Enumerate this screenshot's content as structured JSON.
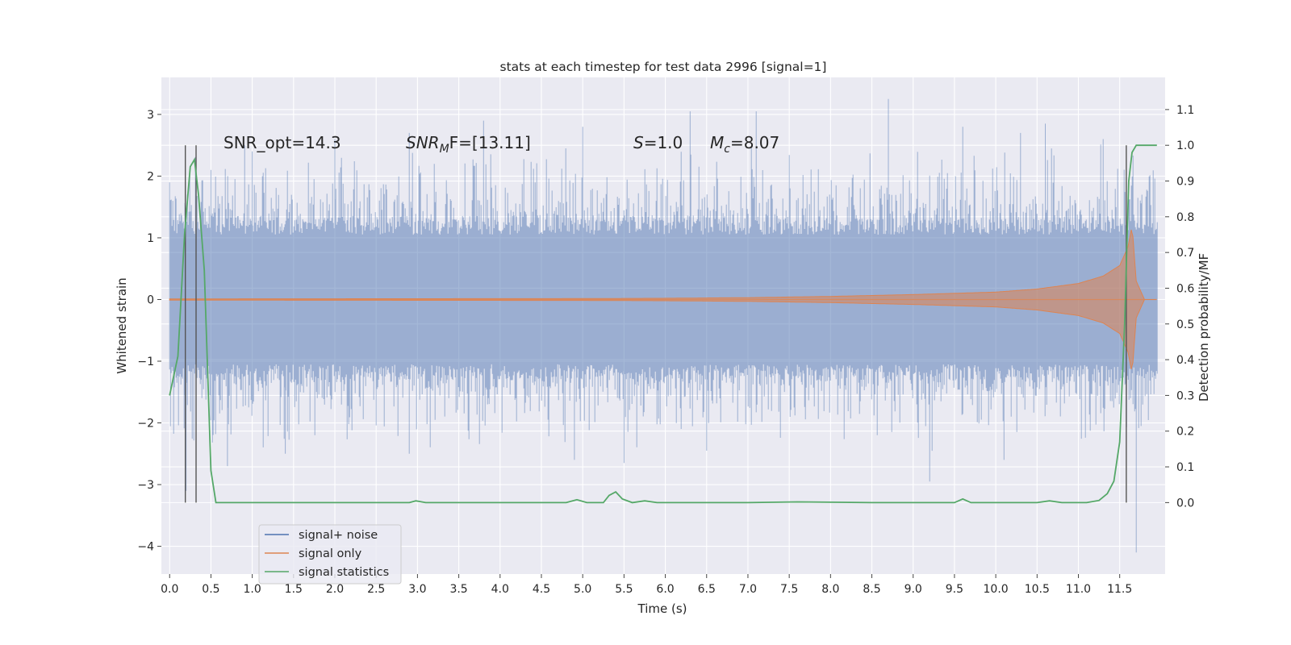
{
  "chart_data": {
    "type": "line",
    "title": "stats at each timestep for test data 2996 [signal=1]",
    "xlabel": "Time (s)",
    "ylabel": "Whitened strain",
    "ylabel_right": "Detection probability/MF",
    "xlim": [
      -0.1,
      12.05
    ],
    "ylim_left": [
      -4.45,
      3.6
    ],
    "ylim_right": [
      -0.2,
      1.19
    ],
    "x_ticks": [
      "0.0",
      "0.5",
      "1.0",
      "1.5",
      "2.0",
      "2.5",
      "3.0",
      "3.5",
      "4.0",
      "4.5",
      "5.0",
      "5.5",
      "6.0",
      "6.5",
      "7.0",
      "7.5",
      "8.0",
      "8.5",
      "9.0",
      "9.5",
      "10.0",
      "10.5",
      "11.0",
      "11.5"
    ],
    "y_ticks_left": [
      "3",
      "2",
      "1",
      "0",
      "−1",
      "−2",
      "−3",
      "−4"
    ],
    "y_ticks_right": [
      "1.1",
      "1.0",
      "0.9",
      "0.8",
      "0.7",
      "0.6",
      "0.5",
      "0.4",
      "0.3",
      "0.2",
      "0.1",
      "0.0"
    ],
    "grid": true,
    "legend_position": "lower-left",
    "annotations": {
      "snr_opt": "SNR_opt=14.3",
      "snr_mf_main": "SNR",
      "snr_mf_sub": "M",
      "snr_mf_tail": "F=[13.11]",
      "s_var": "S",
      "s_val": "=1.0",
      "mc_var": "M",
      "mc_sub": "c",
      "mc_val": "=8.07"
    },
    "vertical_markers_s": [
      0.19,
      0.32,
      11.58
    ],
    "series": [
      {
        "name": "signal+ noise",
        "axis": "left",
        "color": "#4c72b0",
        "envelope_description": "dense whitened noise, bulk amplitude about ±1.3, spikes to about +3.3 and −4.1",
        "spike_max": [
          [
            0.0,
            1.9
          ],
          [
            0.5,
            2.1
          ],
          [
            1.0,
            2.4
          ],
          [
            2.0,
            2.6
          ],
          [
            2.9,
            2.7
          ],
          [
            3.8,
            2.9
          ],
          [
            5.0,
            2.8
          ],
          [
            6.3,
            3.05
          ],
          [
            7.1,
            3.05
          ],
          [
            8.7,
            3.25
          ],
          [
            9.6,
            2.8
          ],
          [
            10.3,
            2.7
          ],
          [
            10.6,
            2.85
          ],
          [
            11.3,
            2.6
          ]
        ],
        "spike_min": [
          [
            0.2,
            -3.1
          ],
          [
            0.7,
            -2.7
          ],
          [
            1.4,
            -2.5
          ],
          [
            2.9,
            -2.5
          ],
          [
            4.9,
            -2.6
          ],
          [
            5.5,
            -2.65
          ],
          [
            6.5,
            -2.45
          ],
          [
            9.2,
            -2.95
          ],
          [
            10.1,
            -2.6
          ],
          [
            11.7,
            -4.1
          ]
        ],
        "n_samples": 12000
      },
      {
        "name": "signal only",
        "axis": "left",
        "color": "#dd8452",
        "amplitude_envelope": [
          [
            0.0,
            0.01
          ],
          [
            5.0,
            0.015
          ],
          [
            6.0,
            0.02
          ],
          [
            7.0,
            0.03
          ],
          [
            8.0,
            0.05
          ],
          [
            9.0,
            0.08
          ],
          [
            10.0,
            0.12
          ],
          [
            10.5,
            0.17
          ],
          [
            11.0,
            0.26
          ],
          [
            11.3,
            0.38
          ],
          [
            11.5,
            0.55
          ],
          [
            11.6,
            0.85
          ],
          [
            11.65,
            1.2
          ],
          [
            11.7,
            0.3
          ],
          [
            11.8,
            0.0
          ]
        ]
      },
      {
        "name": "signal statistics",
        "axis": "right",
        "color": "#55a868",
        "points": [
          [
            0.0,
            0.3
          ],
          [
            0.1,
            0.41
          ],
          [
            0.18,
            0.75
          ],
          [
            0.25,
            0.94
          ],
          [
            0.3,
            0.96
          ],
          [
            0.35,
            0.86
          ],
          [
            0.42,
            0.65
          ],
          [
            0.5,
            0.09
          ],
          [
            0.56,
            0.0
          ],
          [
            1.0,
            0.0
          ],
          [
            2.0,
            0.0
          ],
          [
            2.9,
            0.0
          ],
          [
            2.98,
            0.005
          ],
          [
            3.1,
            0.0
          ],
          [
            4.0,
            0.0
          ],
          [
            4.8,
            0.0
          ],
          [
            4.93,
            0.008
          ],
          [
            5.05,
            0.0
          ],
          [
            5.25,
            0.0
          ],
          [
            5.32,
            0.02
          ],
          [
            5.4,
            0.03
          ],
          [
            5.48,
            0.01
          ],
          [
            5.6,
            0.0
          ],
          [
            5.75,
            0.005
          ],
          [
            5.9,
            0.0
          ],
          [
            6.5,
            0.0
          ],
          [
            7.0,
            0.0
          ],
          [
            7.6,
            0.002
          ],
          [
            8.5,
            0.0
          ],
          [
            9.5,
            0.0
          ],
          [
            9.6,
            0.01
          ],
          [
            9.7,
            0.0
          ],
          [
            10.5,
            0.0
          ],
          [
            10.65,
            0.005
          ],
          [
            10.8,
            0.0
          ],
          [
            11.1,
            0.0
          ],
          [
            11.25,
            0.006
          ],
          [
            11.35,
            0.025
          ],
          [
            11.43,
            0.06
          ],
          [
            11.5,
            0.17
          ],
          [
            11.56,
            0.5
          ],
          [
            11.61,
            0.9
          ],
          [
            11.65,
            0.98
          ],
          [
            11.7,
            1.0
          ],
          [
            11.95,
            1.0
          ]
        ]
      }
    ]
  }
}
